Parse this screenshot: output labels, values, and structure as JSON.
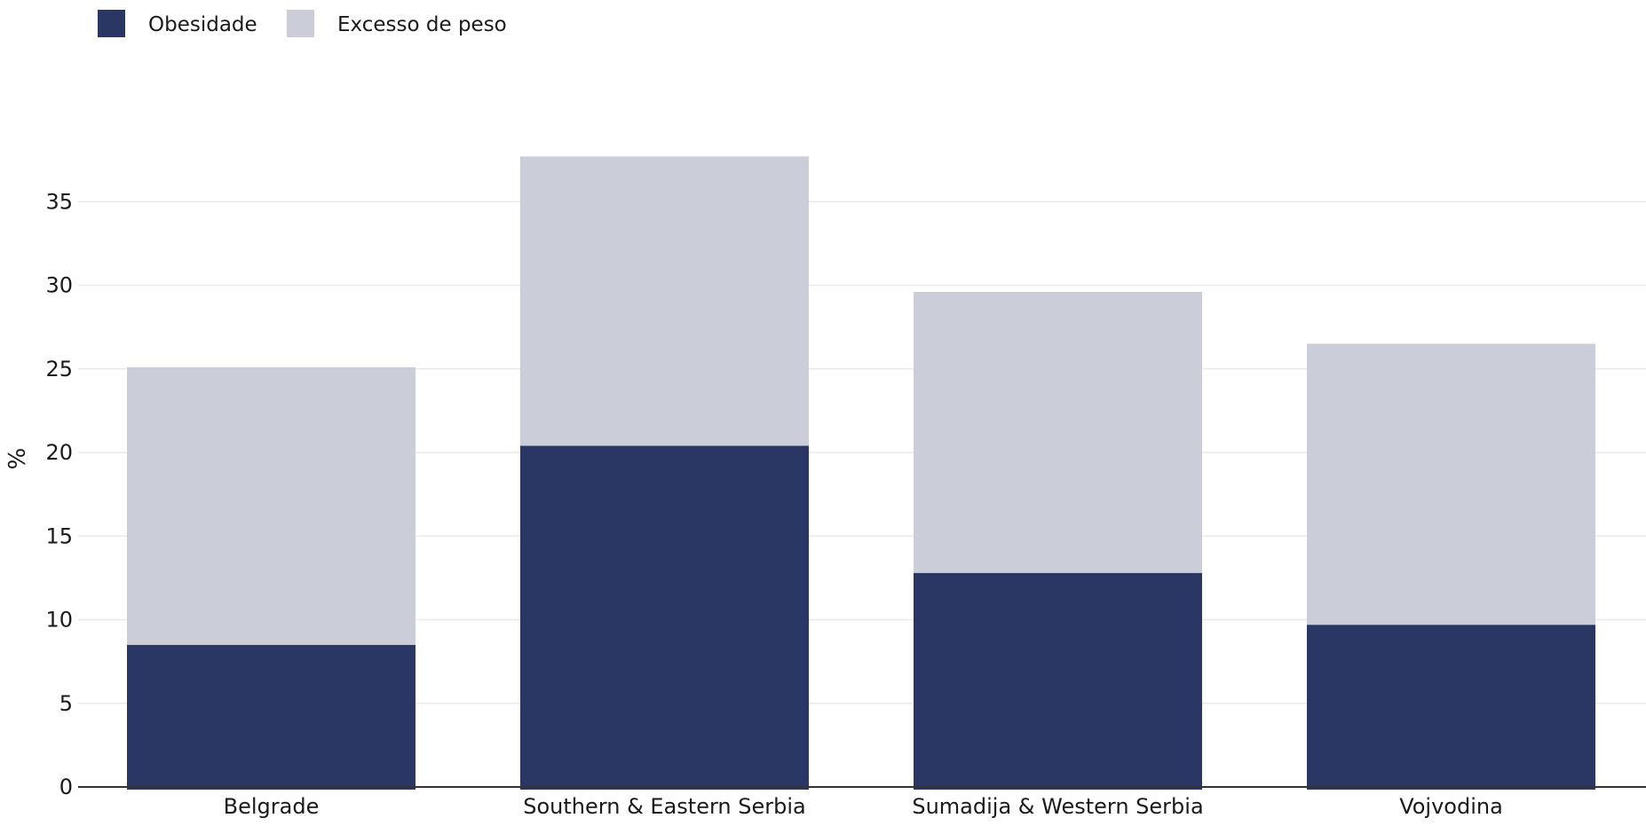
{
  "chart_data": {
    "type": "bar",
    "stacked": true,
    "categories": [
      "Belgrade",
      "Southern & Eastern Serbia",
      "Sumadija & Western Serbia",
      "Vojvodina"
    ],
    "series": [
      {
        "name": "Obesidade",
        "color": "#2a3764",
        "values": [
          8.5,
          20.4,
          12.8,
          9.7
        ]
      },
      {
        "name": "Excesso de peso",
        "color": "#cbcdd9",
        "values": [
          16.6,
          17.3,
          16.8,
          16.8
        ]
      }
    ],
    "title": "",
    "xlabel": "",
    "ylabel": "%",
    "ylim": [
      0,
      37.7
    ],
    "yticks": [
      0,
      5,
      10,
      15,
      20,
      25,
      30,
      35
    ],
    "grid": true,
    "legend_position": "top-left"
  }
}
